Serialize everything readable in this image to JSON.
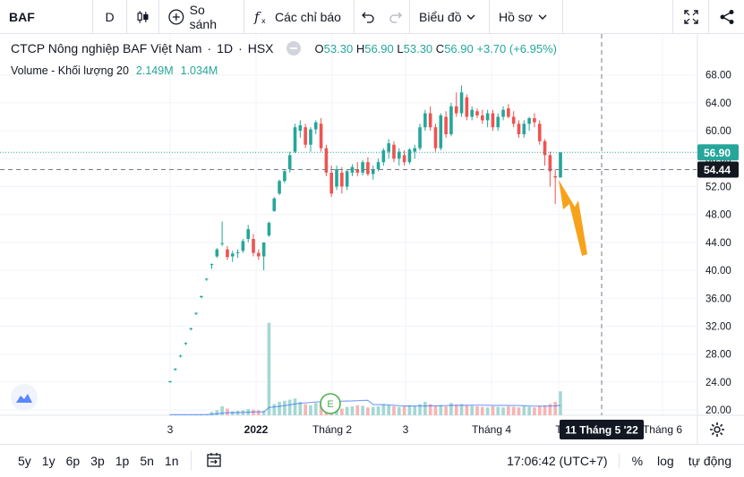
{
  "toolbar": {
    "symbol": "BAF",
    "interval": "D",
    "compare_label": "So sánh",
    "indicators_label": "Các chỉ báo",
    "chart_type_label": "Biểu đồ",
    "profile_label": "Hồ sơ"
  },
  "legend": {
    "title": "CTCP Nông nghiệp BAF Việt Nam",
    "timeframe": "1D",
    "exchange": "HSX",
    "open_label": "O",
    "open": "53.30",
    "high_label": "H",
    "high": "56.90",
    "low_label": "L",
    "low": "53.30",
    "close_label": "C",
    "close": "56.90",
    "change": "+3.70 (+6.95%)"
  },
  "volume_legend": {
    "label": "Volume - Khối lượng 20",
    "value": "2.149M",
    "ma": "1.034M"
  },
  "colors": {
    "up": "#26a69a",
    "down": "#ef5350",
    "volume_up": "#a3d8d3",
    "volume_down": "#f7b4b3",
    "volume_ma": "#2962ff",
    "arrow": "#f7a21b"
  },
  "chart_data": {
    "type": "candlestick",
    "y_axis_ticks": [
      "68.00",
      "64.00",
      "60.00",
      "56.00",
      "52.00",
      "48.00",
      "44.00",
      "40.00",
      "36.00",
      "32.00",
      "28.00",
      "24.00",
      "20.00"
    ],
    "ylim": [
      19.5,
      69.5
    ],
    "x_axis_labels": [
      "3",
      "2022",
      "Tháng 2",
      "3",
      "Tháng 4",
      "T",
      "Tháng 6"
    ],
    "last_price_label": "56.90",
    "crosshair_price_label": "54.44",
    "crosshair_date_label": "11 Tháng 5 '22",
    "event_marker": "E",
    "candles": [
      [
        24.0,
        24.2,
        23.9,
        24.1
      ],
      [
        25.8,
        26.0,
        25.6,
        25.9
      ],
      [
        27.7,
        27.9,
        27.5,
        27.8
      ],
      [
        29.5,
        29.7,
        29.3,
        29.6
      ],
      [
        31.6,
        31.8,
        31.4,
        31.7
      ],
      [
        33.8,
        34.0,
        33.6,
        33.9
      ],
      [
        36.2,
        36.4,
        36.0,
        36.3
      ],
      [
        38.7,
        38.9,
        38.5,
        38.8
      ],
      [
        40.8,
        41.0,
        40.2,
        40.9
      ],
      [
        42.0,
        43.2,
        41.8,
        43.0
      ],
      [
        43.8,
        47.0,
        43.5,
        43.9
      ],
      [
        43.0,
        43.5,
        41.5,
        41.9
      ],
      [
        42.0,
        42.8,
        41.2,
        42.4
      ],
      [
        42.5,
        43.0,
        41.8,
        42.6
      ],
      [
        42.8,
        44.5,
        42.5,
        44.2
      ],
      [
        44.5,
        46.5,
        44.0,
        45.9
      ],
      [
        44.5,
        45.2,
        42.0,
        42.5
      ],
      [
        42.5,
        43.0,
        41.5,
        42.0
      ],
      [
        42.0,
        44.0,
        40.0,
        44.0
      ],
      [
        45.0,
        47.0,
        44.8,
        46.8
      ],
      [
        48.5,
        50.5,
        48.4,
        50.3
      ],
      [
        51.0,
        53.0,
        50.8,
        52.8
      ],
      [
        52.8,
        54.5,
        52.5,
        54.2
      ],
      [
        54.5,
        57.0,
        54.0,
        56.5
      ],
      [
        57.0,
        61.0,
        56.8,
        60.5
      ],
      [
        60.0,
        61.5,
        59.0,
        60.8
      ],
      [
        60.5,
        61.0,
        57.5,
        58.0
      ],
      [
        58.0,
        60.5,
        57.0,
        60.2
      ],
      [
        60.2,
        61.5,
        59.5,
        61.2
      ],
      [
        61.0,
        61.8,
        57.0,
        57.5
      ],
      [
        57.5,
        58.0,
        53.5,
        54.0
      ],
      [
        54.0,
        55.0,
        50.5,
        51.0
      ],
      [
        52.0,
        55.0,
        51.5,
        54.5
      ],
      [
        54.0,
        54.8,
        51.0,
        52.0
      ],
      [
        52.0,
        54.5,
        51.5,
        54.2
      ],
      [
        54.0,
        55.2,
        53.5,
        54.8
      ],
      [
        54.5,
        55.5,
        53.5,
        54.0
      ],
      [
        54.0,
        55.8,
        53.6,
        55.5
      ],
      [
        55.5,
        56.2,
        53.5,
        53.8
      ],
      [
        53.8,
        55.0,
        53.0,
        54.5
      ],
      [
        54.5,
        56.0,
        54.2,
        55.5
      ],
      [
        55.5,
        57.5,
        55.0,
        57.2
      ],
      [
        57.0,
        58.8,
        56.0,
        58.2
      ],
      [
        58.0,
        58.5,
        55.5,
        56.0
      ],
      [
        56.0,
        57.5,
        55.0,
        57.0
      ],
      [
        56.5,
        57.2,
        55.0,
        55.5
      ],
      [
        55.5,
        57.5,
        55.2,
        57.3
      ],
      [
        57.0,
        58.0,
        56.0,
        57.5
      ],
      [
        57.5,
        61.0,
        57.2,
        60.5
      ],
      [
        60.5,
        63.0,
        60.0,
        62.5
      ],
      [
        62.5,
        63.5,
        60.0,
        60.5
      ],
      [
        60.5,
        61.0,
        57.0,
        57.5
      ],
      [
        57.5,
        62.5,
        57.2,
        62.2
      ],
      [
        62.0,
        62.8,
        59.0,
        59.5
      ],
      [
        59.5,
        64.0,
        59.2,
        63.5
      ],
      [
        63.5,
        65.5,
        62.0,
        62.5
      ],
      [
        62.5,
        66.5,
        62.0,
        65.5
      ],
      [
        64.8,
        65.2,
        61.5,
        62.0
      ],
      [
        62.0,
        63.5,
        61.5,
        63.0
      ],
      [
        62.8,
        63.2,
        61.8,
        62.2
      ],
      [
        62.2,
        63.0,
        61.0,
        61.5
      ],
      [
        61.5,
        63.0,
        60.5,
        62.5
      ],
      [
        62.5,
        63.0,
        60.0,
        60.5
      ],
      [
        60.5,
        62.5,
        60.0,
        62.0
      ],
      [
        62.0,
        63.5,
        61.5,
        63.0
      ],
      [
        63.2,
        63.8,
        61.8,
        62.0
      ],
      [
        62.0,
        62.8,
        60.5,
        61.0
      ],
      [
        61.0,
        61.5,
        59.0,
        59.5
      ],
      [
        59.5,
        61.5,
        59.0,
        61.0
      ],
      [
        61.0,
        62.0,
        60.0,
        61.8
      ],
      [
        61.8,
        62.5,
        60.5,
        61.2
      ],
      [
        61.0,
        61.5,
        58.0,
        58.5
      ],
      [
        58.5,
        58.8,
        55.0,
        56.5
      ],
      [
        56.5,
        57.0,
        52.0,
        54.2
      ],
      [
        53.5,
        54.5,
        49.5,
        53.3
      ],
      [
        53.3,
        56.9,
        53.3,
        56.9
      ]
    ],
    "volumes": [
      0.06,
      0.05,
      0.05,
      0.06,
      0.05,
      0.07,
      0.08,
      0.09,
      0.3,
      0.45,
      0.8,
      0.6,
      0.35,
      0.4,
      0.45,
      0.55,
      0.5,
      0.45,
      0.4,
      8.3,
      1.0,
      1.2,
      1.3,
      1.4,
      1.5,
      1.2,
      1.0,
      0.9,
      1.1,
      0.95,
      0.9,
      0.8,
      0.7,
      0.6,
      0.75,
      0.8,
      0.9,
      0.85,
      0.7,
      0.75,
      0.8,
      1.0,
      0.9,
      0.8,
      0.75,
      0.8,
      0.9,
      0.85,
      1.0,
      1.2,
      1.0,
      0.85,
      0.9,
      0.8,
      1.1,
      0.95,
      1.0,
      0.9,
      0.85,
      0.8,
      0.75,
      0.7,
      0.8,
      0.75,
      0.7,
      0.8,
      0.75,
      0.7,
      0.8,
      0.75,
      0.7,
      0.85,
      0.9,
      1.0,
      1.2,
      2.149
    ],
    "volume_max": 9.0
  }
}
